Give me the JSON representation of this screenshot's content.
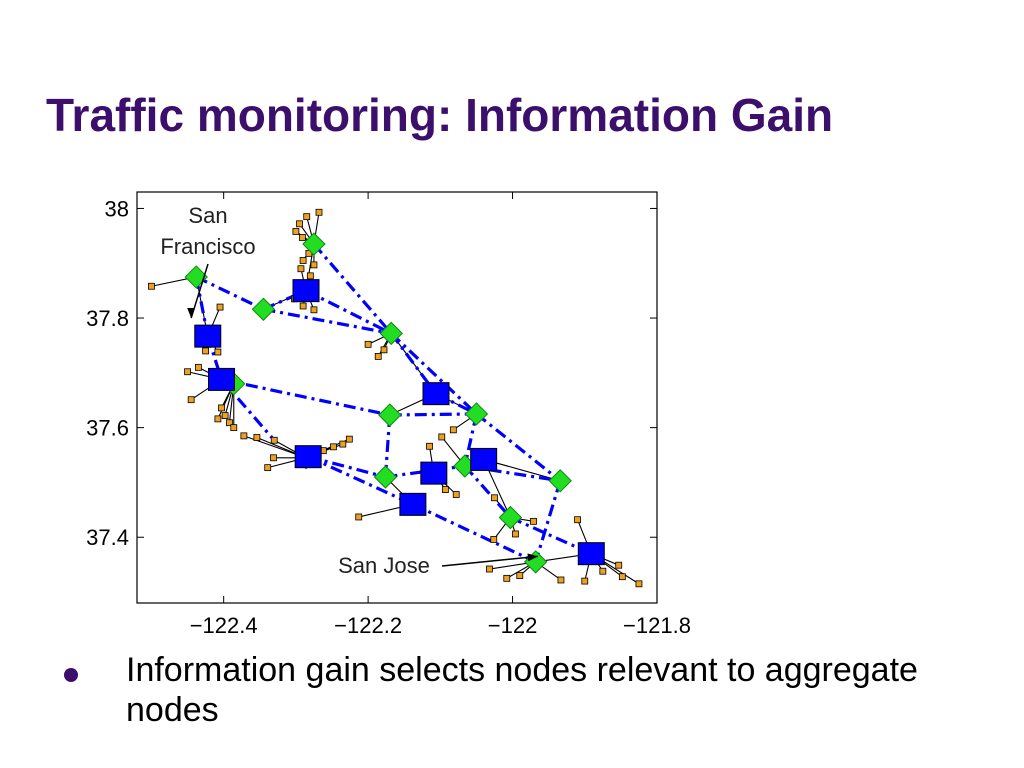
{
  "slide": {
    "title": "Traffic monitoring: Information Gain",
    "bullets": [
      "Information gain selects nodes relevant to aggregate nodes"
    ]
  },
  "colors": {
    "title": "#3b0f6b",
    "aggregate_node": "#0000ff",
    "selected_node": "#22dd22",
    "sensor_node": "#f0a020",
    "dashed_link": "#0000ff",
    "solid_link": "#000000"
  },
  "chart_data": {
    "type": "scatter",
    "xlabel": "",
    "ylabel": "",
    "xlim": [
      -122.52,
      -121.8
    ],
    "ylim": [
      37.28,
      38.03
    ],
    "x_ticks": [
      "-122.4",
      "-122.2",
      "-122",
      "-121.8"
    ],
    "x_tick_values": [
      -122.4,
      -122.2,
      -122.0,
      -121.8
    ],
    "y_ticks": [
      "38",
      "37.8",
      "37.6",
      "37.4"
    ],
    "y_tick_values": [
      38.0,
      37.8,
      37.6,
      37.4
    ],
    "annotations": [
      {
        "text": "San Francisco",
        "lines": [
          "San",
          "Francisco"
        ],
        "x": -122.445,
        "y": 37.8
      },
      {
        "text": "San Jose",
        "lines": [
          "San Jose"
        ],
        "x": -121.965,
        "y": 37.365
      }
    ],
    "aggregate_nodes": [
      {
        "x": -122.286,
        "y": 37.85
      },
      {
        "x": -122.422,
        "y": 37.767
      },
      {
        "x": -122.403,
        "y": 37.688
      },
      {
        "x": -122.106,
        "y": 37.662
      },
      {
        "x": -122.283,
        "y": 37.547
      },
      {
        "x": -122.04,
        "y": 37.542
      },
      {
        "x": -122.109,
        "y": 37.517
      },
      {
        "x": -122.138,
        "y": 37.46
      },
      {
        "x": -121.891,
        "y": 37.37
      }
    ],
    "selected_nodes": [
      {
        "x": -122.275,
        "y": 37.935
      },
      {
        "x": -122.438,
        "y": 37.875
      },
      {
        "x": -122.345,
        "y": 37.816
      },
      {
        "x": -122.168,
        "y": 37.772
      },
      {
        "x": -122.386,
        "y": 37.68
      },
      {
        "x": -122.17,
        "y": 37.623
      },
      {
        "x": -122.05,
        "y": 37.625
      },
      {
        "x": -122.286,
        "y": 37.545
      },
      {
        "x": -122.066,
        "y": 37.53
      },
      {
        "x": -122.176,
        "y": 37.51
      },
      {
        "x": -121.934,
        "y": 37.503
      },
      {
        "x": -122.003,
        "y": 37.436
      },
      {
        "x": -121.968,
        "y": 37.355
      }
    ],
    "sensor_nodes": [
      {
        "x": -122.268,
        "y": 37.993
      },
      {
        "x": -122.285,
        "y": 37.985
      },
      {
        "x": -122.295,
        "y": 37.972
      },
      {
        "x": -122.3,
        "y": 37.958
      },
      {
        "x": -122.291,
        "y": 37.947
      },
      {
        "x": -122.282,
        "y": 37.918
      },
      {
        "x": -122.29,
        "y": 37.905
      },
      {
        "x": -122.275,
        "y": 37.897
      },
      {
        "x": -122.293,
        "y": 37.89
      },
      {
        "x": -122.28,
        "y": 37.877
      },
      {
        "x": -122.5,
        "y": 37.858
      },
      {
        "x": -122.302,
        "y": 37.835
      },
      {
        "x": -122.29,
        "y": 37.822
      },
      {
        "x": -122.275,
        "y": 37.815
      },
      {
        "x": -122.405,
        "y": 37.82
      },
      {
        "x": -122.425,
        "y": 37.74
      },
      {
        "x": -122.435,
        "y": 37.71
      },
      {
        "x": -122.408,
        "y": 37.738
      },
      {
        "x": -122.178,
        "y": 37.742
      },
      {
        "x": -122.186,
        "y": 37.73
      },
      {
        "x": -122.2,
        "y": 37.752
      },
      {
        "x": -122.45,
        "y": 37.702
      },
      {
        "x": -122.445,
        "y": 37.651
      },
      {
        "x": -122.403,
        "y": 37.636
      },
      {
        "x": -122.398,
        "y": 37.622
      },
      {
        "x": -122.408,
        "y": 37.616
      },
      {
        "x": -122.392,
        "y": 37.609
      },
      {
        "x": -122.386,
        "y": 37.6
      },
      {
        "x": -122.372,
        "y": 37.585
      },
      {
        "x": -122.354,
        "y": 37.582
      },
      {
        "x": -122.33,
        "y": 37.577
      },
      {
        "x": -122.226,
        "y": 37.579
      },
      {
        "x": -122.235,
        "y": 37.57
      },
      {
        "x": -122.248,
        "y": 37.565
      },
      {
        "x": -122.262,
        "y": 37.558
      },
      {
        "x": -122.339,
        "y": 37.527
      },
      {
        "x": -122.331,
        "y": 37.545
      },
      {
        "x": -122.115,
        "y": 37.566
      },
      {
        "x": -122.098,
        "y": 37.583
      },
      {
        "x": -122.082,
        "y": 37.596
      },
      {
        "x": -122.213,
        "y": 37.437
      },
      {
        "x": -122.093,
        "y": 37.487
      },
      {
        "x": -122.078,
        "y": 37.478
      },
      {
        "x": -122.025,
        "y": 37.472
      },
      {
        "x": -121.971,
        "y": 37.429
      },
      {
        "x": -121.91,
        "y": 37.432
      },
      {
        "x": -121.996,
        "y": 37.406
      },
      {
        "x": -122.026,
        "y": 37.396
      },
      {
        "x": -122.032,
        "y": 37.342
      },
      {
        "x": -122.008,
        "y": 37.325
      },
      {
        "x": -121.933,
        "y": 37.322
      },
      {
        "x": -121.9,
        "y": 37.32
      },
      {
        "x": -121.875,
        "y": 37.338
      },
      {
        "x": -121.853,
        "y": 37.349
      },
      {
        "x": -121.848,
        "y": 37.328
      },
      {
        "x": -121.825,
        "y": 37.315
      },
      {
        "x": -121.99,
        "y": 37.33
      }
    ],
    "dashed_links": [
      [
        [
          -122.275,
          37.935
        ],
        [
          -122.168,
          37.772
        ]
      ],
      [
        [
          -122.438,
          37.875
        ],
        [
          -122.345,
          37.816
        ]
      ],
      [
        [
          -122.345,
          37.816
        ],
        [
          -122.286,
          37.85
        ]
      ],
      [
        [
          -122.286,
          37.85
        ],
        [
          -122.168,
          37.772
        ]
      ],
      [
        [
          -122.345,
          37.816
        ],
        [
          -122.168,
          37.772
        ]
      ],
      [
        [
          -122.438,
          37.875
        ],
        [
          -122.422,
          37.767
        ]
      ],
      [
        [
          -122.422,
          37.767
        ],
        [
          -122.403,
          37.688
        ]
      ],
      [
        [
          -122.403,
          37.688
        ],
        [
          -122.17,
          37.623
        ]
      ],
      [
        [
          -122.403,
          37.688
        ],
        [
          -122.33,
          37.577
        ]
      ],
      [
        [
          -122.168,
          37.772
        ],
        [
          -122.106,
          37.662
        ]
      ],
      [
        [
          -122.168,
          37.772
        ],
        [
          -122.05,
          37.625
        ]
      ],
      [
        [
          -122.106,
          37.662
        ],
        [
          -122.05,
          37.625
        ]
      ],
      [
        [
          -122.17,
          37.623
        ],
        [
          -122.05,
          37.625
        ]
      ],
      [
        [
          -122.05,
          37.625
        ],
        [
          -122.066,
          37.53
        ]
      ],
      [
        [
          -122.05,
          37.625
        ],
        [
          -121.934,
          37.503
        ]
      ],
      [
        [
          -122.17,
          37.623
        ],
        [
          -122.176,
          37.51
        ]
      ],
      [
        [
          -122.283,
          37.547
        ],
        [
          -122.176,
          37.51
        ]
      ],
      [
        [
          -122.283,
          37.547
        ],
        [
          -122.138,
          37.46
        ]
      ],
      [
        [
          -122.176,
          37.51
        ],
        [
          -122.066,
          37.53
        ]
      ],
      [
        [
          -122.066,
          37.53
        ],
        [
          -121.934,
          37.503
        ]
      ],
      [
        [
          -122.066,
          37.53
        ],
        [
          -122.003,
          37.436
        ]
      ],
      [
        [
          -122.138,
          37.46
        ],
        [
          -121.968,
          37.355
        ]
      ],
      [
        [
          -121.934,
          37.503
        ],
        [
          -121.968,
          37.355
        ]
      ],
      [
        [
          -122.003,
          37.436
        ],
        [
          -121.891,
          37.37
        ]
      ]
    ]
  }
}
